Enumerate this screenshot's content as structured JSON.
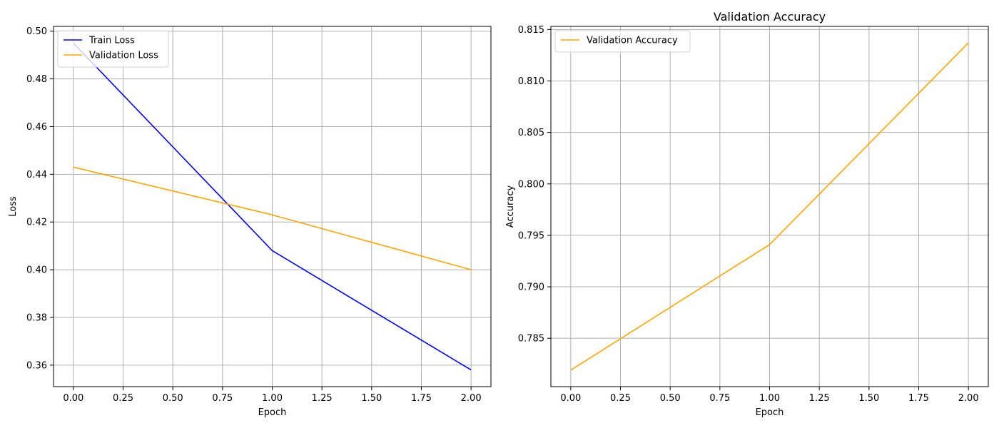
{
  "chart_data": [
    {
      "type": "line",
      "title": "",
      "xlabel": "Epoch",
      "ylabel": "Loss",
      "x": [
        0,
        1,
        2
      ],
      "xlim": [
        -0.1,
        2.1
      ],
      "ylim": [
        0.351,
        0.502
      ],
      "xticks": [
        0.0,
        0.25,
        0.5,
        0.75,
        1.0,
        1.25,
        1.5,
        1.75,
        2.0
      ],
      "yticks": [
        0.36,
        0.38,
        0.4,
        0.42,
        0.44,
        0.46,
        0.48,
        0.5
      ],
      "x_tick_decimals": 2,
      "y_tick_decimals": 2,
      "grid": true,
      "legend": "upper-left",
      "series": [
        {
          "name": "Train Loss",
          "color": "#0000ff",
          "values": [
            0.495,
            0.408,
            0.358
          ]
        },
        {
          "name": "Validation Loss",
          "color": "#ffa500",
          "values": [
            0.443,
            0.423,
            0.4
          ]
        }
      ]
    },
    {
      "type": "line",
      "title": "Validation Accuracy",
      "xlabel": "Epoch",
      "ylabel": "Accuracy",
      "x": [
        0,
        1,
        2
      ],
      "xlim": [
        -0.1,
        2.1
      ],
      "ylim": [
        0.7803,
        0.8153
      ],
      "xticks": [
        0.0,
        0.25,
        0.5,
        0.75,
        1.0,
        1.25,
        1.5,
        1.75,
        2.0
      ],
      "yticks": [
        0.785,
        0.79,
        0.795,
        0.8,
        0.805,
        0.81,
        0.815
      ],
      "x_tick_decimals": 2,
      "y_tick_decimals": 3,
      "grid": true,
      "legend": "upper-left",
      "series": [
        {
          "name": "Validation Accuracy",
          "color": "#ffa500",
          "values": [
            0.7819,
            0.7941,
            0.8137
          ]
        }
      ]
    }
  ]
}
